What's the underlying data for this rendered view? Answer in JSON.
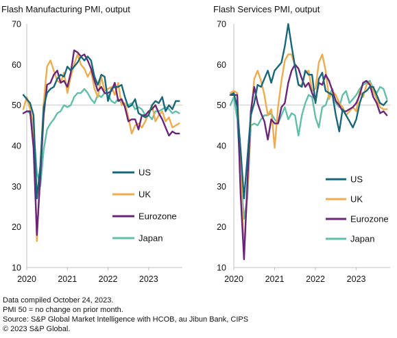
{
  "chart_data": [
    {
      "type": "line",
      "title": "Flash Manufacturing PMI, output",
      "xlabel": "",
      "ylabel": "",
      "ylim": [
        10,
        70
      ],
      "yticks": [
        10,
        20,
        30,
        40,
        50,
        60,
        70
      ],
      "xlim": [
        2020.0,
        2023.83
      ],
      "xticks": [
        "2020",
        "2021",
        "2022",
        "2023"
      ],
      "reference_line": 50,
      "grid": false,
      "legend_position": "lower-right",
      "x": [
        "2019-12",
        "2020-01",
        "2020-02",
        "2020-03",
        "2020-04",
        "2020-05",
        "2020-06",
        "2020-07",
        "2020-08",
        "2020-09",
        "2020-10",
        "2020-11",
        "2020-12",
        "2021-01",
        "2021-02",
        "2021-03",
        "2021-04",
        "2021-05",
        "2021-06",
        "2021-07",
        "2021-08",
        "2021-09",
        "2021-10",
        "2021-11",
        "2021-12",
        "2022-01",
        "2022-02",
        "2022-03",
        "2022-04",
        "2022-05",
        "2022-06",
        "2022-07",
        "2022-08",
        "2022-09",
        "2022-10",
        "2022-11",
        "2022-12",
        "2023-01",
        "2023-02",
        "2023-03",
        "2023-04",
        "2023-05",
        "2023-06",
        "2023-07",
        "2023-08",
        "2023-09",
        "2023-10"
      ],
      "series": [
        {
          "name": "US",
          "color": "#16677a",
          "values": [
            52.5,
            51.5,
            50.5,
            47.5,
            27.0,
            35.0,
            49.5,
            53.0,
            54.0,
            54.5,
            56.5,
            57.5,
            57.0,
            59.5,
            58.5,
            59.5,
            60.5,
            62.0,
            61.0,
            62.0,
            61.0,
            57.0,
            55.0,
            57.5,
            57.0,
            51.0,
            54.0,
            54.5,
            54.5,
            55.0,
            52.0,
            49.5,
            50.0,
            51.5,
            48.0,
            47.5,
            47.0,
            47.5,
            50.0,
            51.0,
            50.5,
            52.0,
            48.5,
            50.0,
            49.0,
            51.0,
            51.0
          ]
        },
        {
          "name": "UK",
          "color": "#efab4c",
          "values": [
            49.0,
            52.0,
            49.0,
            45.0,
            16.5,
            35.0,
            50.5,
            59.5,
            61.0,
            58.5,
            56.0,
            55.5,
            58.0,
            53.0,
            57.0,
            60.0,
            62.5,
            60.0,
            59.0,
            57.0,
            58.5,
            54.0,
            52.0,
            57.0,
            53.5,
            54.0,
            54.5,
            52.5,
            55.5,
            50.0,
            50.5,
            47.0,
            43.0,
            45.0,
            45.5,
            44.5,
            46.0,
            48.0,
            50.0,
            46.0,
            47.5,
            48.5,
            46.0,
            47.0,
            44.5,
            45.0,
            45.5
          ]
        },
        {
          "name": "Eurozone",
          "color": "#6a2479",
          "values": [
            48.0,
            48.5,
            48.5,
            39.5,
            18.0,
            32.5,
            47.5,
            55.0,
            55.5,
            57.5,
            58.5,
            55.5,
            56.0,
            54.5,
            58.0,
            63.5,
            63.0,
            62.0,
            62.5,
            61.0,
            59.0,
            56.0,
            53.5,
            54.5,
            53.0,
            53.0,
            53.5,
            55.5,
            51.0,
            51.5,
            49.5,
            46.0,
            46.5,
            46.5,
            44.0,
            47.5,
            47.5,
            48.5,
            49.0,
            50.0,
            48.0,
            46.5,
            44.5,
            42.5,
            43.5,
            43.0,
            43.0
          ]
        },
        {
          "name": "Japan",
          "color": "#5fbfa8",
          "values": [
            48.0,
            48.5,
            48.0,
            44.0,
            33.5,
            30.0,
            39.0,
            44.0,
            45.5,
            46.5,
            48.0,
            48.5,
            50.0,
            49.5,
            50.0,
            52.0,
            53.0,
            53.0,
            54.0,
            53.0,
            51.5,
            50.5,
            52.5,
            52.0,
            53.0,
            52.5,
            51.0,
            50.5,
            51.5,
            50.5,
            50.0,
            50.0,
            50.5,
            49.0,
            49.5,
            49.0,
            47.5,
            47.5,
            46.5,
            48.5,
            48.5,
            49.0,
            49.5,
            49.0,
            48.0,
            48.5,
            48.0
          ]
        }
      ]
    },
    {
      "type": "line",
      "title": "Flash Services PMI, output",
      "xlabel": "",
      "ylabel": "",
      "ylim": [
        10,
        70
      ],
      "yticks": [
        10,
        20,
        30,
        40,
        50,
        60,
        70
      ],
      "xlim": [
        2020.0,
        2023.83
      ],
      "xticks": [
        "2020",
        "2021",
        "2022",
        "2023"
      ],
      "reference_line": 50,
      "grid": false,
      "legend_position": "lower-right",
      "x": [
        "2019-12",
        "2020-01",
        "2020-02",
        "2020-03",
        "2020-04",
        "2020-05",
        "2020-06",
        "2020-07",
        "2020-08",
        "2020-09",
        "2020-10",
        "2020-11",
        "2020-12",
        "2021-01",
        "2021-02",
        "2021-03",
        "2021-04",
        "2021-05",
        "2021-06",
        "2021-07",
        "2021-08",
        "2021-09",
        "2021-10",
        "2021-11",
        "2021-12",
        "2022-01",
        "2022-02",
        "2022-03",
        "2022-04",
        "2022-05",
        "2022-06",
        "2022-07",
        "2022-08",
        "2022-09",
        "2022-10",
        "2022-11",
        "2022-12",
        "2023-01",
        "2023-02",
        "2023-03",
        "2023-04",
        "2023-05",
        "2023-06",
        "2023-07",
        "2023-08",
        "2023-09",
        "2023-10"
      ],
      "series": [
        {
          "name": "US",
          "color": "#16677a",
          "values": [
            52.5,
            53.0,
            49.5,
            39.0,
            27.0,
            37.0,
            47.5,
            50.5,
            55.0,
            54.5,
            56.5,
            58.5,
            55.5,
            58.5,
            59.5,
            60.5,
            64.5,
            70.0,
            64.5,
            59.5,
            55.0,
            54.5,
            58.5,
            57.5,
            57.5,
            50.5,
            56.5,
            58.0,
            53.5,
            53.0,
            52.5,
            47.5,
            43.5,
            49.0,
            47.5,
            46.0,
            44.5,
            46.5,
            50.5,
            53.0,
            53.5,
            54.5,
            54.5,
            52.5,
            50.5,
            50.0,
            51.0
          ]
        },
        {
          "name": "UK",
          "color": "#efab4c",
          "values": [
            53.0,
            53.5,
            53.0,
            34.5,
            13.5,
            29.0,
            47.0,
            56.5,
            58.5,
            56.0,
            52.5,
            47.5,
            49.0,
            39.5,
            49.5,
            56.0,
            61.0,
            62.5,
            62.5,
            59.5,
            55.0,
            55.0,
            58.0,
            58.5,
            53.5,
            54.0,
            60.5,
            62.5,
            58.5,
            51.5,
            53.5,
            52.5,
            50.5,
            49.5,
            47.5,
            48.5,
            49.5,
            48.5,
            53.5,
            52.0,
            55.0,
            55.5,
            53.5,
            51.5,
            49.5,
            49.0,
            49.0
          ]
        },
        {
          "name": "Eurozone",
          "color": "#6a2479",
          "values": [
            52.5,
            52.5,
            52.5,
            28.0,
            12.0,
            31.0,
            48.5,
            54.5,
            50.5,
            48.0,
            46.0,
            41.5,
            46.5,
            45.5,
            45.5,
            49.5,
            50.5,
            55.5,
            58.5,
            60.0,
            59.0,
            56.5,
            54.5,
            55.5,
            53.0,
            51.0,
            55.5,
            55.0,
            57.5,
            56.0,
            53.5,
            51.0,
            50.0,
            48.5,
            48.5,
            49.0,
            49.5,
            50.5,
            52.5,
            55.5,
            56.0,
            55.0,
            52.0,
            50.5,
            48.0,
            48.5,
            47.5
          ]
        },
        {
          "name": "Japan",
          "color": "#5fbfa8",
          "values": [
            50.0,
            52.0,
            46.5,
            33.0,
            22.0,
            27.0,
            45.0,
            45.5,
            45.0,
            46.5,
            47.5,
            47.5,
            48.0,
            46.5,
            45.5,
            47.5,
            49.5,
            46.5,
            48.0,
            47.5,
            42.5,
            47.5,
            50.5,
            52.5,
            52.0,
            47.0,
            44.5,
            49.5,
            50.0,
            52.5,
            54.0,
            50.5,
            49.5,
            52.5,
            53.5,
            50.5,
            51.5,
            52.5,
            54.0,
            55.0,
            55.5,
            56.0,
            54.0,
            53.0,
            54.5,
            54.0,
            51.5
          ]
        }
      ]
    }
  ],
  "footnotes": [
    "Data compiled October 24, 2023.",
    "PMI 50 = no change on prior month.",
    "Source: S&P Global Market Intelligence with HCOB, au Jibun Bank, CIPS",
    "© 2023 S&P Global."
  ]
}
